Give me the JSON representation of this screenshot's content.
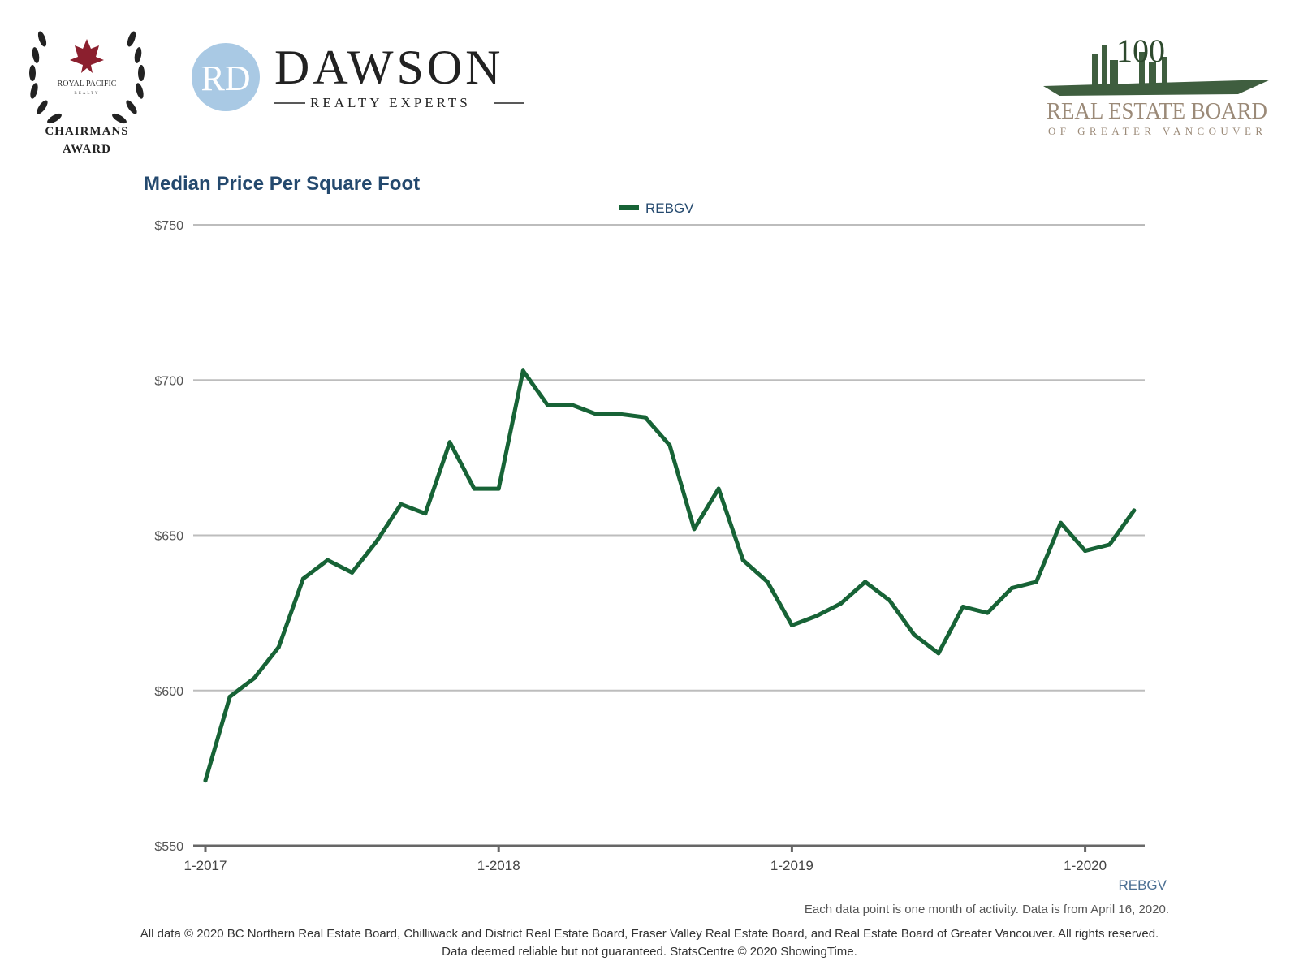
{
  "header": {
    "left_award": {
      "brand": "ROYAL PACIFIC",
      "sub": "REALTY",
      "line1": "CHAIRMANS",
      "line2": "AWARD"
    },
    "dawson": {
      "monogram": "RD",
      "name": "DAWSON",
      "tagline": "REALTY EXPERTS"
    },
    "board": {
      "years": "100",
      "line1": "REAL ESTATE BOARD",
      "line2": "OF GREATER VANCOUVER"
    }
  },
  "colors": {
    "series": "#176336",
    "title": "#24496e",
    "grid": "#bdbdbd",
    "axis": "#666666"
  },
  "chart_data": {
    "type": "line",
    "title": "Median Price Per Square Foot",
    "xlabel": "",
    "ylabel": "",
    "ylim": [
      550,
      750
    ],
    "yticks": [
      550,
      600,
      650,
      700,
      750
    ],
    "ytick_labels": [
      "$550",
      "$600",
      "$650",
      "$700",
      "$750"
    ],
    "xticks": [
      "1-2017",
      "1-2018",
      "1-2019",
      "1-2020"
    ],
    "legend": "top",
    "grid": true,
    "corner_label": "REBGV",
    "series": [
      {
        "name": "REBGV",
        "x": [
          "1-2017",
          "2-2017",
          "3-2017",
          "4-2017",
          "5-2017",
          "6-2017",
          "7-2017",
          "8-2017",
          "9-2017",
          "10-2017",
          "11-2017",
          "12-2017",
          "1-2018",
          "2-2018",
          "3-2018",
          "4-2018",
          "5-2018",
          "6-2018",
          "7-2018",
          "8-2018",
          "9-2018",
          "10-2018",
          "11-2018",
          "12-2018",
          "1-2019",
          "2-2019",
          "3-2019",
          "4-2019",
          "5-2019",
          "6-2019",
          "7-2019",
          "8-2019",
          "9-2019",
          "10-2019",
          "11-2019",
          "12-2019",
          "1-2020",
          "2-2020",
          "3-2020",
          "4-2020"
        ],
        "values": [
          571,
          598,
          604,
          614,
          636,
          642,
          638,
          648,
          660,
          657,
          680,
          665,
          665,
          703,
          692,
          692,
          689,
          689,
          688,
          679,
          652,
          665,
          642,
          635,
          621,
          624,
          628,
          635,
          629,
          618,
          612,
          627,
          625,
          633,
          635,
          654,
          645,
          647,
          658,
          null
        ]
      }
    ]
  },
  "footer": {
    "note": "Each data point is one month of activity. Data is from April 16, 2020.",
    "line1": "All data © 2020 BC Northern Real Estate Board, Chilliwack and District Real Estate Board, Fraser Valley Real Estate Board, and Real Estate Board of Greater Vancouver. All rights reserved.",
    "line2": "Data deemed reliable but not guaranteed. StatsCentre © 2020 ShowingTime."
  }
}
